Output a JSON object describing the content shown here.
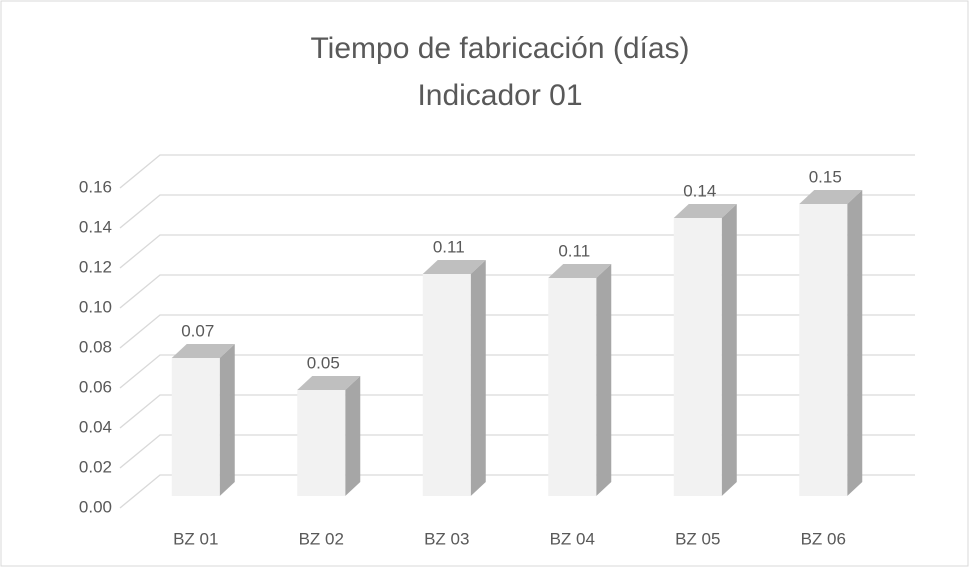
{
  "chart_data": {
    "type": "bar3d",
    "title": [
      "Tiempo de fabricación (días)",
      "Indicador 01"
    ],
    "categories": [
      "BZ 01",
      "BZ 02",
      "BZ 03",
      "BZ 04",
      "BZ 05",
      "BZ 06"
    ],
    "values": [
      0.069,
      0.053,
      0.111,
      0.109,
      0.139,
      0.146
    ],
    "value_labels": [
      "0.07",
      "0.05",
      "0.11",
      "0.11",
      "0.14",
      "0.15"
    ],
    "color": "#f2f2f2",
    "ylim": [
      0,
      0.16
    ],
    "yticks": [
      {
        "value": 0,
        "label": "0.00"
      },
      {
        "value": 0.02,
        "label": "0.02"
      },
      {
        "value": 0.04,
        "label": "0.04"
      },
      {
        "value": 0.06,
        "label": "0.06"
      },
      {
        "value": 0.08,
        "label": "0.08"
      },
      {
        "value": 0.1,
        "label": "0.10"
      },
      {
        "value": 0.12,
        "label": "0.12"
      },
      {
        "value": 0.14,
        "label": "0.14"
      },
      {
        "value": 0.16,
        "label": "0.16"
      }
    ],
    "grid": true
  }
}
